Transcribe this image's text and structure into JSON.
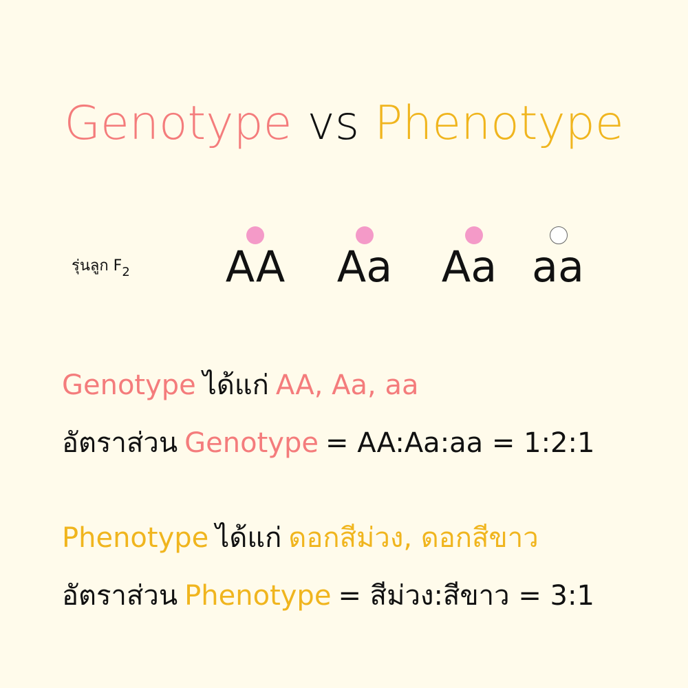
{
  "title": {
    "left": "Genotype",
    "middle": "vs",
    "right": "Phenotype"
  },
  "generation": {
    "label": "รุ่นลูก F",
    "subscript": "2"
  },
  "genotypes": [
    {
      "text": "AA",
      "phenotype": "purple"
    },
    {
      "text": "Aa",
      "phenotype": "purple"
    },
    {
      "text": "Aa",
      "phenotype": "purple"
    },
    {
      "text": "aa",
      "phenotype": "white"
    }
  ],
  "genotype_line": {
    "term": "Genotype",
    "verb": "ได้แก่",
    "list": "AA, Aa, aa"
  },
  "genotype_ratio": {
    "prefix": "อัตราส่วน",
    "term": "Genotype",
    "expr": "= AA:Aa:aa = 1:2:1"
  },
  "phenotype_line": {
    "term": "Phenotype",
    "verb": "ได้แก่",
    "list": "ดอกสีม่วง, ดอกสีขาว"
  },
  "phenotype_ratio": {
    "prefix": "อัตราส่วน",
    "term": "Phenotype",
    "expr": "= สีม่วง:สีขาว = 3:1"
  },
  "colors": {
    "genotype": "#f47c7c",
    "phenotype": "#f0b51e",
    "purple_dot": "#f49ac8",
    "white_dot": "#ffffff",
    "background": "#fffbeb"
  }
}
